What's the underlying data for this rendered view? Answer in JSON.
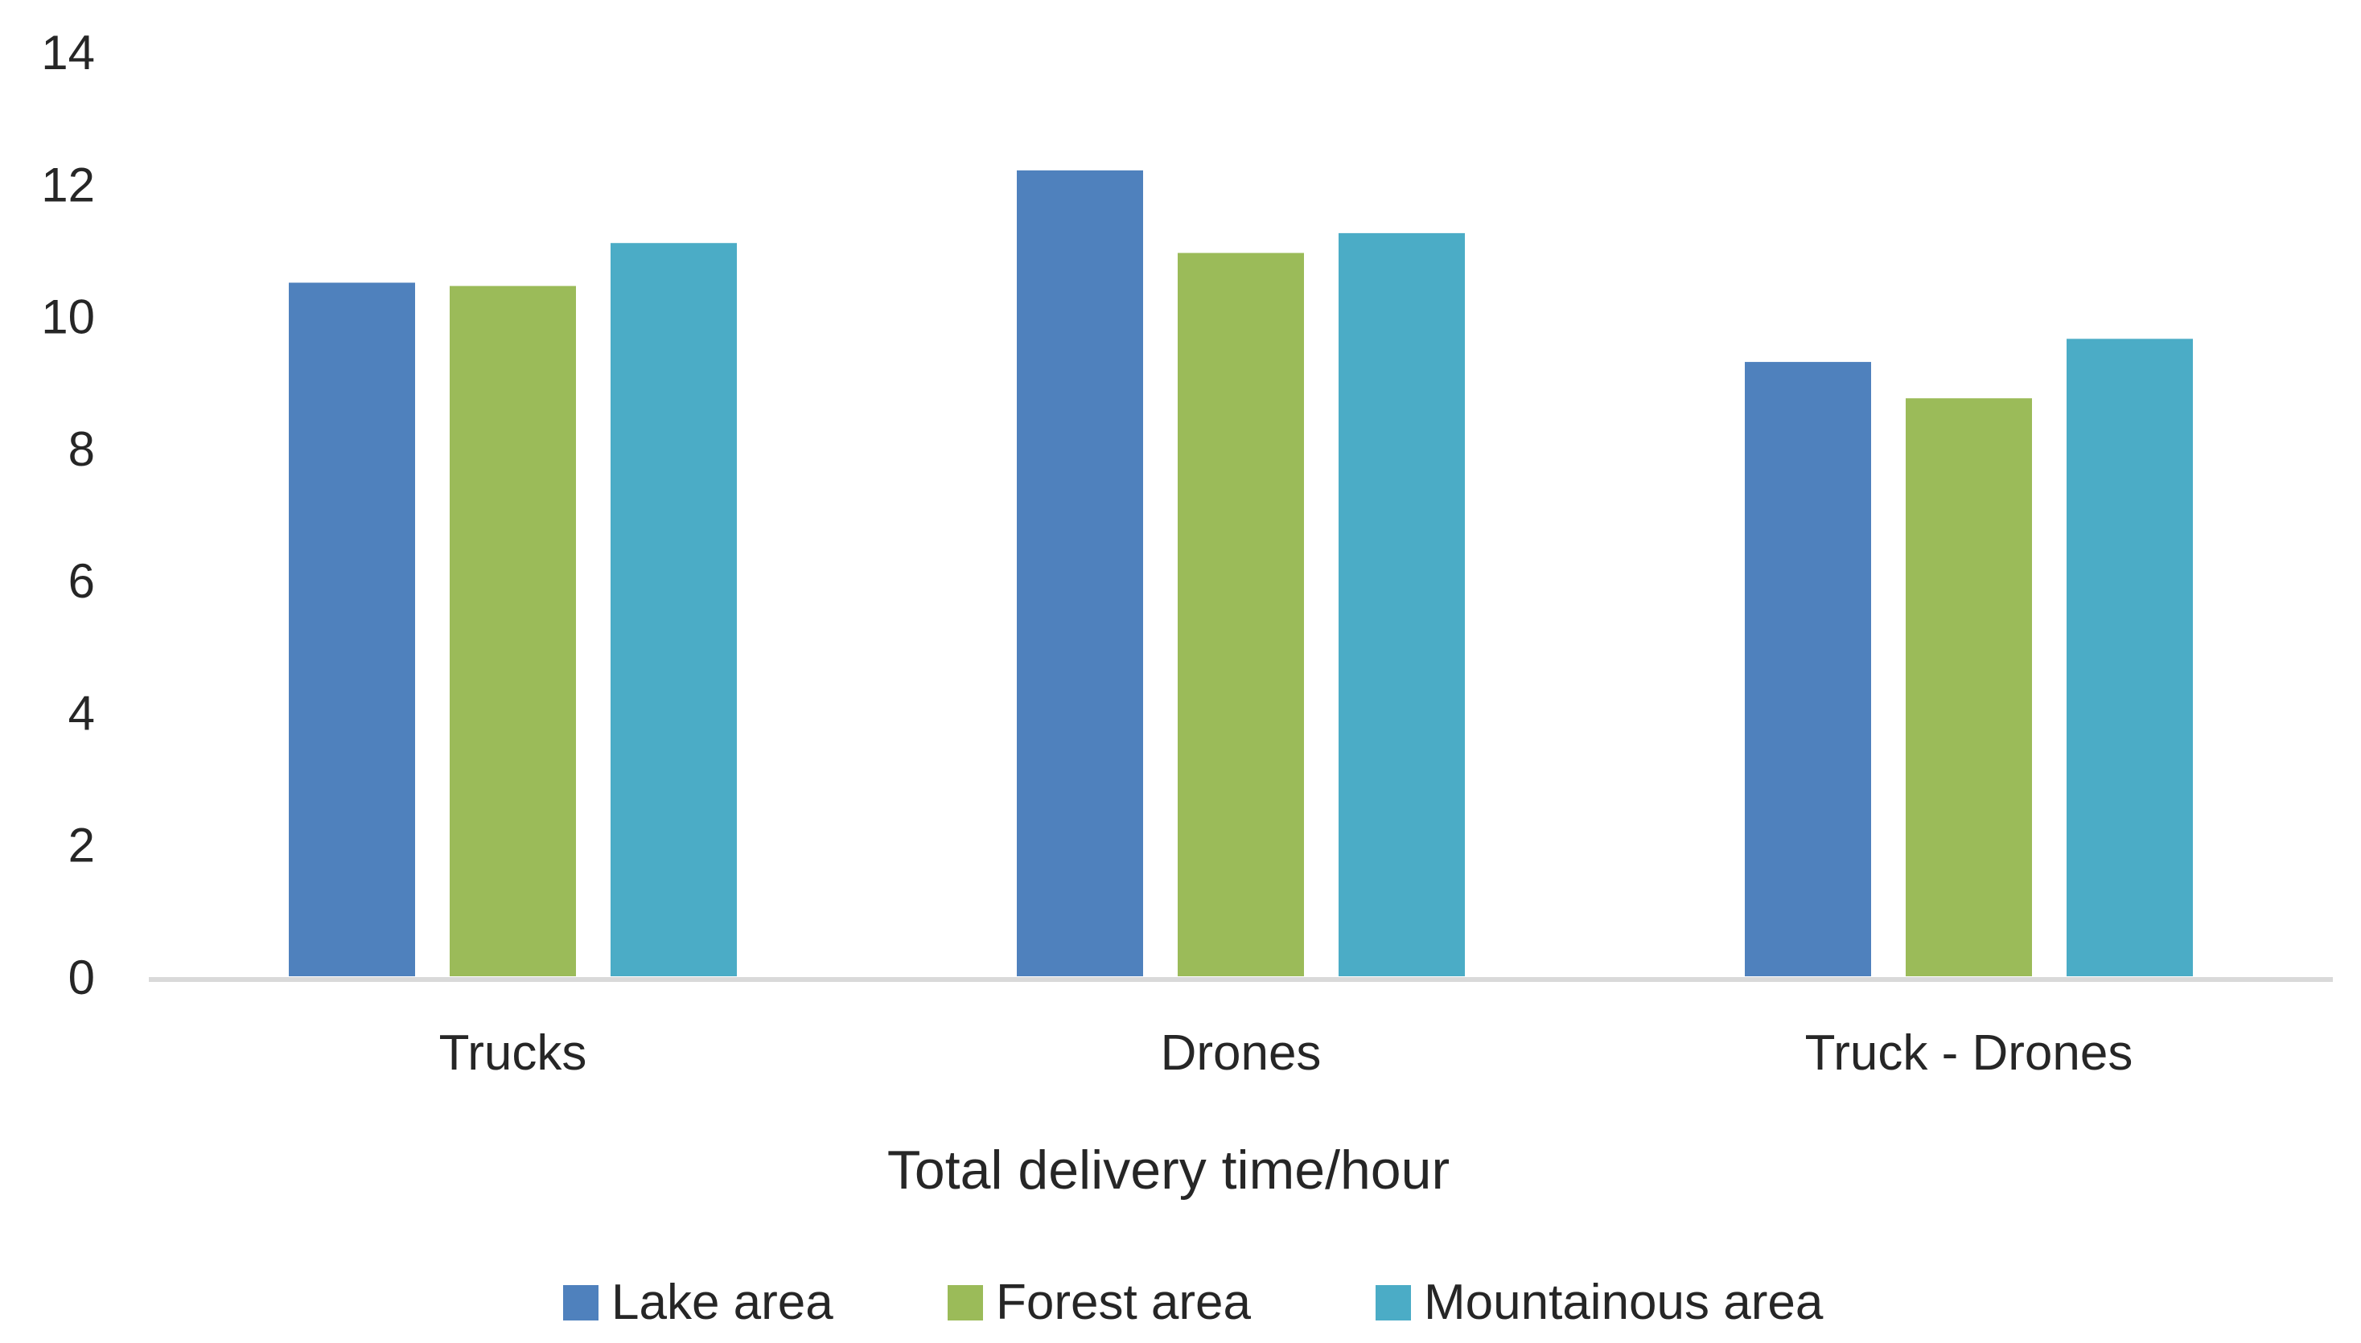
{
  "chart_data": {
    "type": "bar",
    "categories": [
      "Trucks",
      "Drones",
      "Truck - Drones"
    ],
    "series": [
      {
        "name": "Lake area",
        "values": [
          10.5,
          12.2,
          9.3
        ],
        "color": "#4F81BD"
      },
      {
        "name": "Forest area",
        "values": [
          10.45,
          10.95,
          8.75
        ],
        "color": "#9BBB59"
      },
      {
        "name": "Mountainous area",
        "values": [
          11.1,
          11.25,
          9.65
        ],
        "color": "#4BACC6"
      }
    ],
    "title": "",
    "xlabel": "Total delivery time/hour",
    "ylabel": "",
    "ylim": [
      0,
      14
    ],
    "yticks": [
      "0",
      "2",
      "4",
      "6",
      "8",
      "10",
      "12",
      "14"
    ],
    "grid": false,
    "legend": "bottom",
    "axis_color": "#D9D9D9"
  }
}
